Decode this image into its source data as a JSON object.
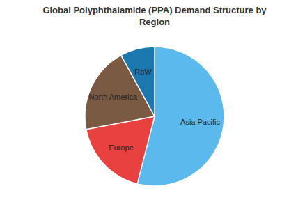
{
  "chart_data": {
    "type": "pie",
    "title": "Global Polyphthalamide (PPA) Demand Structure by Region",
    "categories": [
      "Asia Pacific",
      "Europe",
      "North America",
      "RoW"
    ],
    "values": [
      54,
      18,
      20,
      8
    ],
    "colors": [
      "#5bb9ee",
      "#e8413f",
      "#7b5a43",
      "#1b79b0"
    ]
  }
}
